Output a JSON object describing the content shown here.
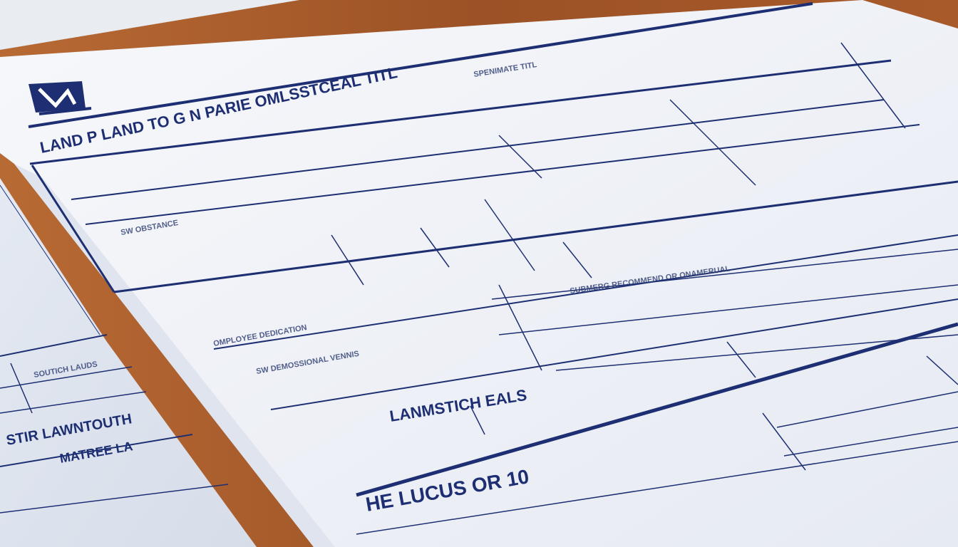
{
  "scene": {
    "description_colors": {
      "desk": "#9a5428",
      "paper": "#f3f5f9",
      "ink": "#1d2f72"
    },
    "logo_icon": "house-logo-icon"
  },
  "main_document": {
    "header_title": "LAND P LAND TO G N PARIE OMLSSTCEAL TITL",
    "section_heading": "LANMSTICH EALS",
    "lower_heading": "HE LUCUS OR 10",
    "small_top_right": "SPENIMATE TITL",
    "field_labels": [
      "SW OBSTANCE",
      "OMPLOYEE DEDICATION",
      "SW DEMOSSIONAL VENNIS",
      "SUBMERG RECOMMEND OR ONAMERUAL"
    ]
  },
  "back_document": {
    "field_label": "SOUTICH LAUDS",
    "heading_1": "STIR LAWNTOUTH",
    "heading_2": "MATREE LA"
  }
}
